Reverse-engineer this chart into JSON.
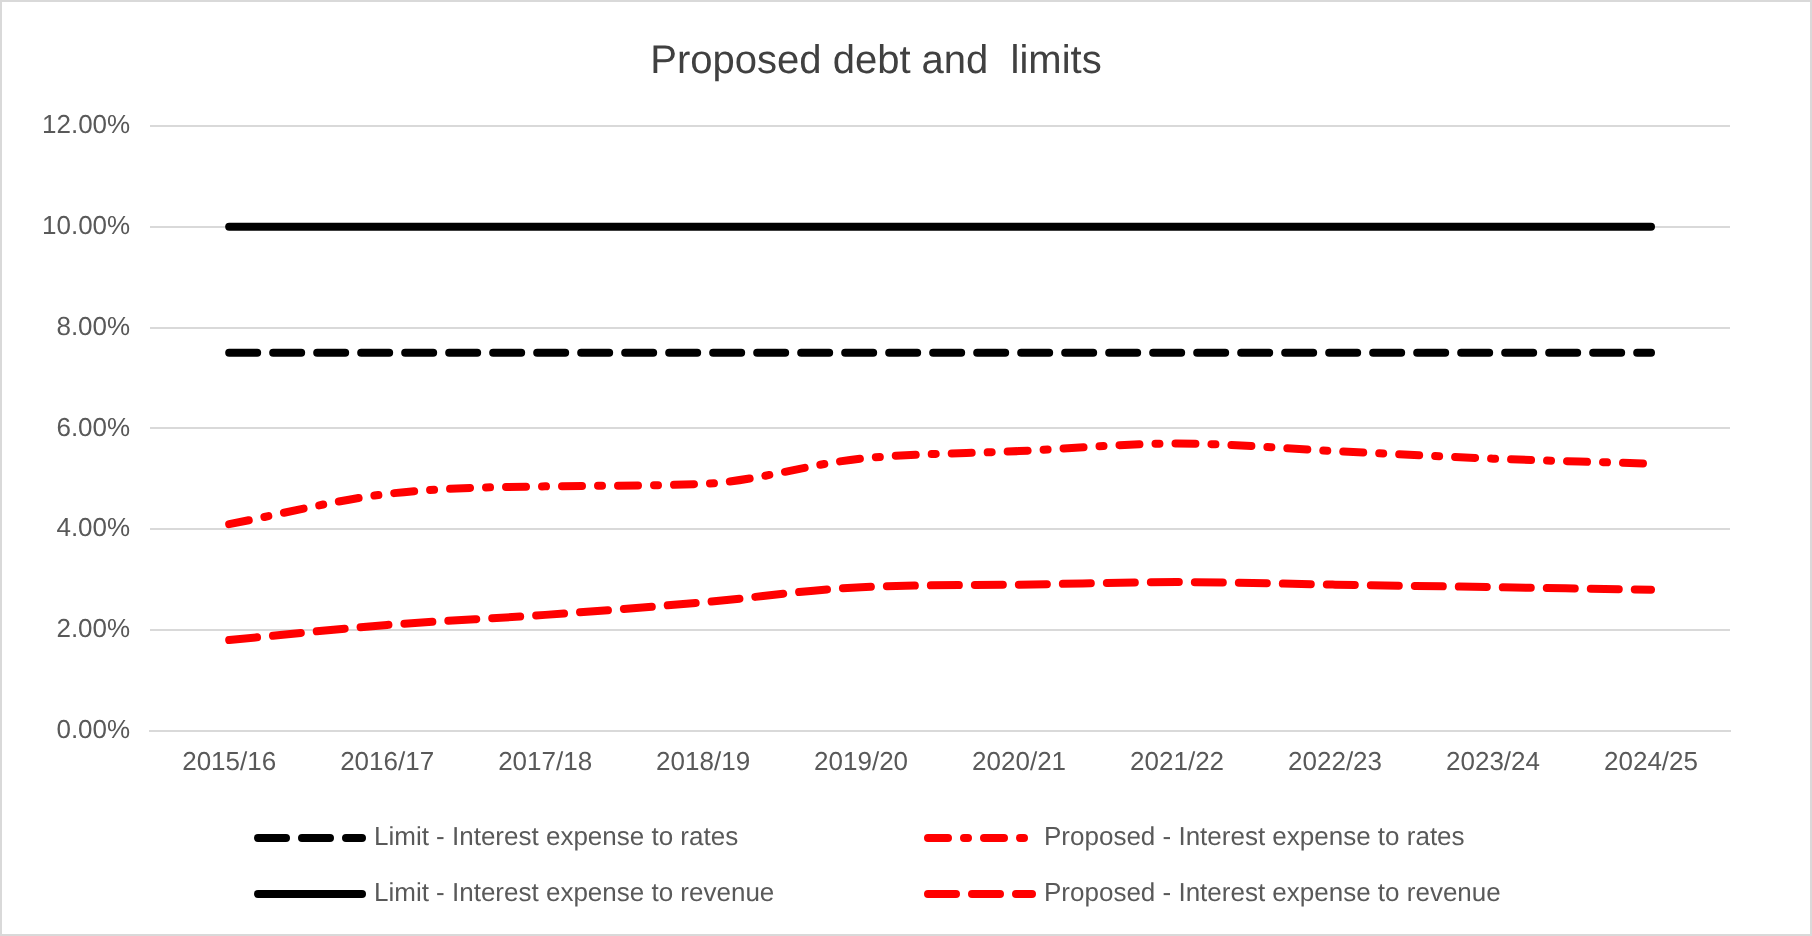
{
  "chart_data": {
    "type": "line",
    "title": "Proposed debt and  limits",
    "categories": [
      "2015/16",
      "2016/17",
      "2017/18",
      "2018/19",
      "2019/20",
      "2020/21",
      "2021/22",
      "2022/23",
      "2023/24",
      "2024/25"
    ],
    "series": [
      {
        "name": "Limit - Interest expense to rates",
        "color": "#000000",
        "line_style": "dashed",
        "values": [
          7.5,
          7.5,
          7.5,
          7.5,
          7.5,
          7.5,
          7.5,
          7.5,
          7.5,
          7.5
        ]
      },
      {
        "name": "Proposed - Interest expense to rates",
        "color": "#ff0000",
        "line_style": "dashdot",
        "values": [
          4.1,
          4.7,
          4.85,
          4.9,
          5.4,
          5.55,
          5.7,
          5.55,
          5.4,
          5.3
        ]
      },
      {
        "name": "Limit - Interest expense to revenue",
        "color": "#000000",
        "line_style": "solid",
        "values": [
          10,
          10,
          10,
          10,
          10,
          10,
          10,
          10,
          10,
          10
        ]
      },
      {
        "name": "Proposed - Interest expense to revenue",
        "color": "#ff0000",
        "line_style": "dashed",
        "values": [
          1.8,
          2.1,
          2.3,
          2.55,
          2.85,
          2.9,
          2.95,
          2.9,
          2.85,
          2.8
        ]
      }
    ],
    "ylim": [
      0,
      12
    ],
    "yticks": [
      {
        "value": 0,
        "label": "0.00%"
      },
      {
        "value": 2,
        "label": "2.00%"
      },
      {
        "value": 4,
        "label": "4.00%"
      },
      {
        "value": 6,
        "label": "6.00%"
      },
      {
        "value": 8,
        "label": "8.00%"
      },
      {
        "value": 10,
        "label": "10.00%"
      },
      {
        "value": 12,
        "label": "12.00%"
      }
    ],
    "grid": "y",
    "legend": "bottom",
    "marker": "none"
  }
}
